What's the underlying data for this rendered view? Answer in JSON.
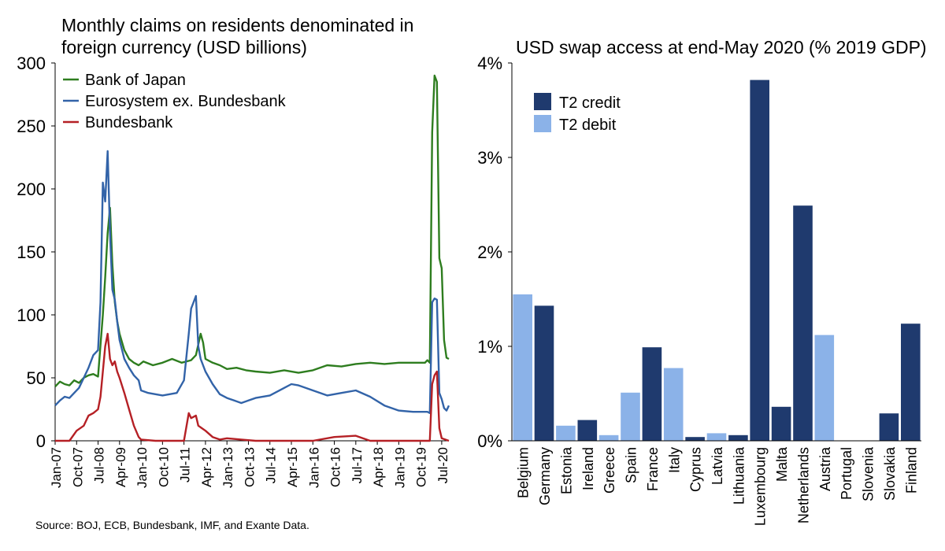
{
  "source_note": "Source: BOJ, ECB, Bundesbank, IMF, and Exante Data.",
  "chart_data": [
    {
      "type": "line",
      "title": "Monthly claims on residents denominated in foreign currency (USD billions)",
      "title_lines": [
        "Monthly claims on residents denominated in",
        "foreign currency (USD billions)"
      ],
      "ylim": [
        0,
        300
      ],
      "yticks": [
        "0",
        "50",
        "100",
        "150",
        "200",
        "250",
        "300"
      ],
      "xticks": [
        "Jan-07",
        "Oct-07",
        "Jul-08",
        "Apr-09",
        "Jan-10",
        "Oct-10",
        "Jul-11",
        "Apr-12",
        "Jan-13",
        "Oct-13",
        "Jul-14",
        "Apr-15",
        "Jan-16",
        "Oct-16",
        "Jul-17",
        "Apr-18",
        "Jan-19",
        "Oct-19",
        "Jul-20"
      ],
      "x_start": "Jan-07",
      "x_end": "Oct-20",
      "legend_position": "top-left",
      "series": [
        {
          "name": "Bank of Japan",
          "color": "#2e7d1f",
          "points": [
            [
              "Jan-07",
              43
            ],
            [
              "Mar-07",
              47
            ],
            [
              "May-07",
              45
            ],
            [
              "Jul-07",
              44
            ],
            [
              "Sep-07",
              48
            ],
            [
              "Nov-07",
              46
            ],
            [
              "Jan-08",
              50
            ],
            [
              "Mar-08",
              52
            ],
            [
              "May-08",
              53
            ],
            [
              "Jul-08",
              51
            ],
            [
              "Sep-08",
              100
            ],
            [
              "Oct-08",
              130
            ],
            [
              "Nov-08",
              165
            ],
            [
              "Dec-08",
              185
            ],
            [
              "Jan-09",
              140
            ],
            [
              "Feb-09",
              110
            ],
            [
              "Mar-09",
              95
            ],
            [
              "Apr-09",
              85
            ],
            [
              "Jun-09",
              72
            ],
            [
              "Aug-09",
              65
            ],
            [
              "Oct-09",
              62
            ],
            [
              "Dec-09",
              60
            ],
            [
              "Feb-10",
              63
            ],
            [
              "Jun-10",
              60
            ],
            [
              "Oct-10",
              62
            ],
            [
              "Feb-11",
              65
            ],
            [
              "Jun-11",
              62
            ],
            [
              "Oct-11",
              64
            ],
            [
              "Dec-11",
              68
            ],
            [
              "Feb-12",
              85
            ],
            [
              "Mar-12",
              78
            ],
            [
              "Apr-12",
              65
            ],
            [
              "Jul-12",
              62
            ],
            [
              "Oct-12",
              60
            ],
            [
              "Jan-13",
              57
            ],
            [
              "May-13",
              58
            ],
            [
              "Sep-13",
              56
            ],
            [
              "Jan-14",
              55
            ],
            [
              "Jul-14",
              54
            ],
            [
              "Jan-15",
              56
            ],
            [
              "Jul-15",
              54
            ],
            [
              "Jan-16",
              56
            ],
            [
              "Jul-16",
              60
            ],
            [
              "Jan-17",
              59
            ],
            [
              "Jul-17",
              61
            ],
            [
              "Jan-18",
              62
            ],
            [
              "Jul-18",
              61
            ],
            [
              "Jan-19",
              62
            ],
            [
              "Jul-19",
              62
            ],
            [
              "Dec-19",
              62
            ],
            [
              "Jan-20",
              64
            ],
            [
              "Feb-20",
              62
            ],
            [
              "Mar-20",
              245
            ],
            [
              "Apr-20",
              290
            ],
            [
              "May-20",
              285
            ],
            [
              "Jun-20",
              145
            ],
            [
              "Jul-20",
              137
            ],
            [
              "Aug-20",
              80
            ],
            [
              "Sep-20",
              66
            ],
            [
              "Oct-20",
              65
            ]
          ]
        },
        {
          "name": "Eurosystem ex. Bundesbank",
          "color": "#3263a8",
          "points": [
            [
              "Jan-07",
              28
            ],
            [
              "Mar-07",
              32
            ],
            [
              "May-07",
              35
            ],
            [
              "Jul-07",
              34
            ],
            [
              "Sep-07",
              38
            ],
            [
              "Nov-07",
              42
            ],
            [
              "Jan-08",
              50
            ],
            [
              "Mar-08",
              58
            ],
            [
              "May-08",
              68
            ],
            [
              "Jul-08",
              72
            ],
            [
              "Aug-08",
              110
            ],
            [
              "Sep-08",
              205
            ],
            [
              "Oct-08",
              190
            ],
            [
              "Nov-08",
              230
            ],
            [
              "Dec-08",
              165
            ],
            [
              "Jan-09",
              120
            ],
            [
              "Feb-09",
              112
            ],
            [
              "Mar-09",
              95
            ],
            [
              "Apr-09",
              80
            ],
            [
              "Jun-09",
              65
            ],
            [
              "Aug-09",
              58
            ],
            [
              "Oct-09",
              52
            ],
            [
              "Dec-09",
              48
            ],
            [
              "Jan-10",
              40
            ],
            [
              "Apr-10",
              38
            ],
            [
              "Jul-10",
              37
            ],
            [
              "Oct-10",
              36
            ],
            [
              "Jan-11",
              37
            ],
            [
              "Apr-11",
              38
            ],
            [
              "Jul-11",
              48
            ],
            [
              "Sep-11",
              85
            ],
            [
              "Oct-11",
              105
            ],
            [
              "Nov-11",
              110
            ],
            [
              "Dec-11",
              115
            ],
            [
              "Jan-12",
              75
            ],
            [
              "Feb-12",
              65
            ],
            [
              "Apr-12",
              55
            ],
            [
              "Jul-12",
              45
            ],
            [
              "Oct-12",
              37
            ],
            [
              "Jan-13",
              34
            ],
            [
              "Apr-13",
              32
            ],
            [
              "Jul-13",
              30
            ],
            [
              "Oct-13",
              32
            ],
            [
              "Jan-14",
              34
            ],
            [
              "Jul-14",
              36
            ],
            [
              "Jan-15",
              42
            ],
            [
              "Apr-15",
              45
            ],
            [
              "Jul-15",
              44
            ],
            [
              "Jan-16",
              40
            ],
            [
              "Jul-16",
              36
            ],
            [
              "Jan-17",
              38
            ],
            [
              "Jul-17",
              40
            ],
            [
              "Jan-18",
              35
            ],
            [
              "Jul-18",
              28
            ],
            [
              "Jan-19",
              24
            ],
            [
              "Jul-19",
              23
            ],
            [
              "Jan-20",
              23
            ],
            [
              "Feb-20",
              22
            ],
            [
              "Mar-20",
              110
            ],
            [
              "Apr-20",
              113
            ],
            [
              "May-20",
              112
            ],
            [
              "Jun-20",
              38
            ],
            [
              "Jul-20",
              33
            ],
            [
              "Aug-20",
              26
            ],
            [
              "Sep-20",
              24
            ],
            [
              "Oct-20",
              28
            ]
          ]
        },
        {
          "name": "Bundesbank",
          "color": "#b52025",
          "points": [
            [
              "Jan-07",
              0
            ],
            [
              "Jul-07",
              0
            ],
            [
              "Oct-07",
              8
            ],
            [
              "Jan-08",
              12
            ],
            [
              "Mar-08",
              20
            ],
            [
              "May-08",
              22
            ],
            [
              "Jul-08",
              25
            ],
            [
              "Aug-08",
              35
            ],
            [
              "Sep-08",
              55
            ],
            [
              "Oct-08",
              75
            ],
            [
              "Nov-08",
              85
            ],
            [
              "Dec-08",
              65
            ],
            [
              "Jan-09",
              60
            ],
            [
              "Feb-09",
              63
            ],
            [
              "Mar-09",
              55
            ],
            [
              "Apr-09",
              50
            ],
            [
              "Jun-09",
              38
            ],
            [
              "Aug-09",
              25
            ],
            [
              "Oct-09",
              12
            ],
            [
              "Dec-09",
              3
            ],
            [
              "Jan-10",
              1
            ],
            [
              "Jul-10",
              0
            ],
            [
              "Jul-11",
              0
            ],
            [
              "Sep-11",
              22
            ],
            [
              "Oct-11",
              18
            ],
            [
              "Dec-11",
              20
            ],
            [
              "Jan-12",
              12
            ],
            [
              "Apr-12",
              8
            ],
            [
              "Jul-12",
              3
            ],
            [
              "Oct-12",
              1
            ],
            [
              "Jan-13",
              2
            ],
            [
              "Jul-13",
              1
            ],
            [
              "Jan-14",
              0
            ],
            [
              "Jan-16",
              0
            ],
            [
              "Oct-16",
              3
            ],
            [
              "Jul-17",
              4
            ],
            [
              "Jan-18",
              0
            ],
            [
              "Feb-20",
              0
            ],
            [
              "Mar-20",
              45
            ],
            [
              "Apr-20",
              52
            ],
            [
              "May-20",
              55
            ],
            [
              "Jun-20",
              10
            ],
            [
              "Jul-20",
              2
            ],
            [
              "Oct-20",
              0
            ]
          ]
        }
      ]
    },
    {
      "type": "bar",
      "title": "USD swap access at end-May 2020 (% 2019 GDP)",
      "ylim": [
        0,
        4
      ],
      "yticks": [
        "0%",
        "1%",
        "2%",
        "3%",
        "4%"
      ],
      "legend_position": "top-left",
      "legend": [
        {
          "name": "T2 credit",
          "color": "#1f3a6e"
        },
        {
          "name": "T2 debit",
          "color": "#8bb2e8"
        }
      ],
      "categories": [
        "Belgium",
        "Germany",
        "Estonia",
        "Ireland",
        "Greece",
        "Spain",
        "France",
        "Italy",
        "Cyprus",
        "Latvia",
        "Lithuania",
        "Luxembourg",
        "Malta",
        "Netherlands",
        "Austria",
        "Portugal",
        "Slovenia",
        "Slovakia",
        "Finland"
      ],
      "values": [
        1.55,
        1.43,
        0.16,
        0.22,
        0.06,
        0.51,
        0.99,
        0.77,
        0.04,
        0.08,
        0.06,
        3.82,
        0.36,
        2.49,
        1.12,
        0,
        0,
        0.29,
        1.24
      ],
      "t2_status": [
        "debit",
        "credit",
        "debit",
        "credit",
        "debit",
        "debit",
        "credit",
        "debit",
        "credit",
        "debit",
        "credit",
        "credit",
        "credit",
        "credit",
        "debit",
        "credit",
        "credit",
        "credit",
        "credit"
      ]
    }
  ]
}
